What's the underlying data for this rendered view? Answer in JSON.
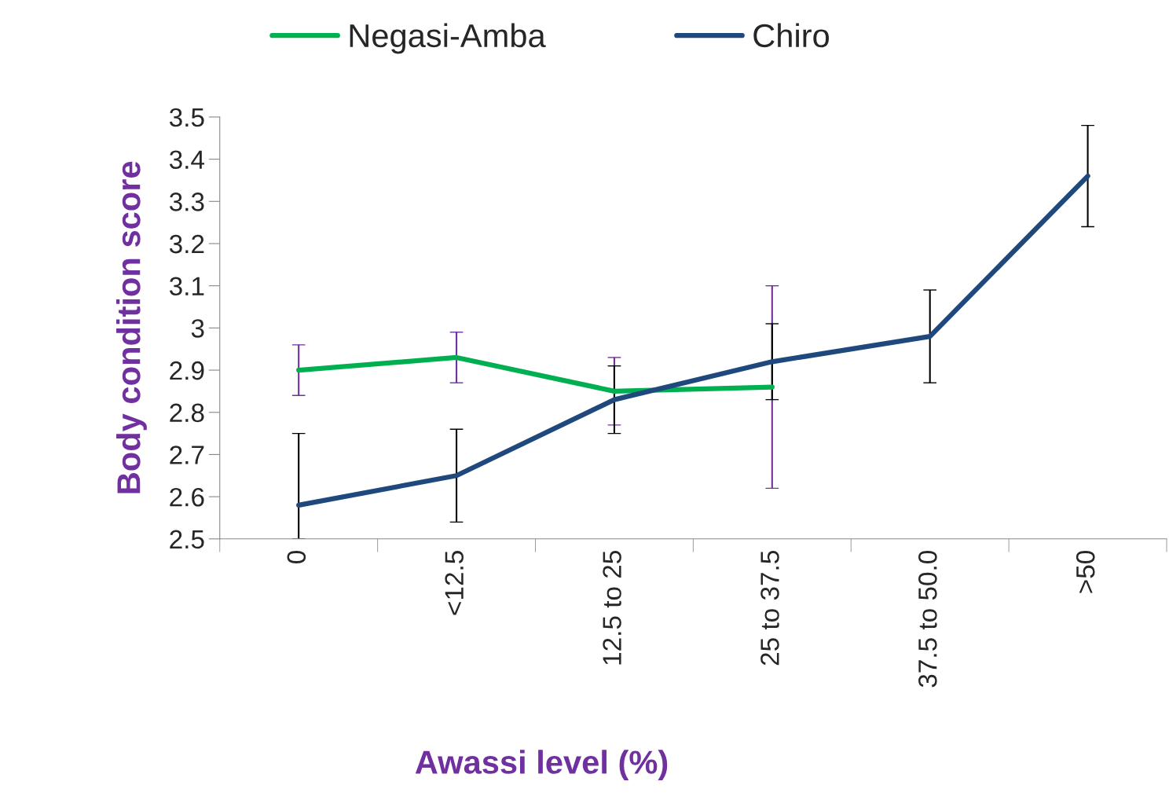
{
  "chart_data": {
    "type": "line",
    "xlabel": "Awassi level (%)",
    "ylabel": "Body condition score",
    "categories": [
      "0",
      "<12.5",
      "12.5 to 25",
      "25 to 37.5",
      "37.5 to 50.0",
      ">50"
    ],
    "series": [
      {
        "name": "Negasi-Amba",
        "color": "#00b050",
        "values": [
          2.9,
          2.93,
          2.85,
          2.86,
          null,
          null
        ],
        "errors": [
          0.06,
          0.06,
          0.08,
          0.24,
          null,
          null
        ]
      },
      {
        "name": "Chiro",
        "color": "#1f497d",
        "values": [
          2.58,
          2.65,
          2.83,
          2.92,
          2.98,
          3.36
        ],
        "errors": [
          [
            2.5,
            2.75
          ],
          0.11,
          0.08,
          0.09,
          0.11,
          0.12
        ]
      }
    ],
    "ylim": [
      2.5,
      3.5
    ],
    "yticks": [
      2.5,
      2.6,
      2.7,
      2.8,
      2.9,
      3,
      3.1,
      3.2,
      3.3,
      3.4,
      3.5
    ],
    "grid": false,
    "legend": "top",
    "marker": "none",
    "line_style": "solid"
  }
}
